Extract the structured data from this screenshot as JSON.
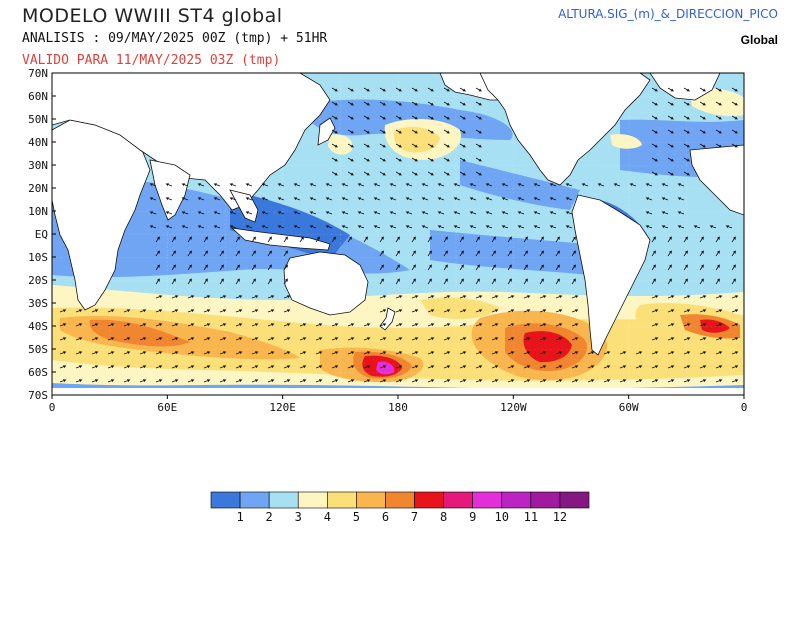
{
  "header": {
    "title": "MODELO  WWIII  ST4  global",
    "analysis": "ANALISIS : 09/MAY/2025 00Z  (tmp) + 51HR",
    "valid": "VALIDO PARA  11/MAY/2025 03Z  (tmp)",
    "variable": "ALTURA.SIG_(m)_&_DIRECCION_PICO",
    "region": "Global"
  },
  "map": {
    "lat_labels": [
      "70N",
      "60N",
      "50N",
      "40N",
      "30N",
      "20N",
      "10N",
      "EQ",
      "10S",
      "20S",
      "30S",
      "40S",
      "50S",
      "60S",
      "70S"
    ],
    "lon_labels": [
      "0",
      "60E",
      "120E",
      "180",
      "120W",
      "60W",
      "0"
    ]
  },
  "colorbar": {
    "colors": [
      "#3b78dc",
      "#6fa5f3",
      "#a8e0f3",
      "#fdf5c2",
      "#fbe07a",
      "#f9b54e",
      "#f0862f",
      "#e8141b",
      "#e5197b",
      "#e32fd9",
      "#bb24c2",
      "#a1199e",
      "#851783"
    ],
    "labels": [
      "1",
      "2",
      "3",
      "4",
      "5",
      "6",
      "7",
      "8",
      "9",
      "10",
      "11",
      "12"
    ]
  }
}
